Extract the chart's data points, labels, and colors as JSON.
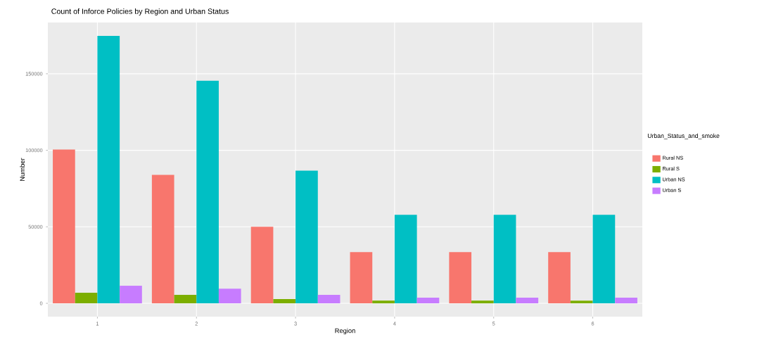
{
  "chart_data": {
    "type": "bar",
    "title": "Count of Inforce Policies by Region and Urban Status",
    "xlabel": "Region",
    "ylabel": "Number",
    "legend_title": "Urban_Status_and_smoke",
    "categories": [
      "1",
      "2",
      "3",
      "4",
      "5",
      "6"
    ],
    "series": [
      {
        "name": "Rural NS",
        "color": "#f8766d",
        "values": [
          100500,
          84000,
          50000,
          33500,
          33500,
          33500
        ]
      },
      {
        "name": "Rural S",
        "color": "#7cae00",
        "values": [
          6900,
          5500,
          2800,
          1800,
          1800,
          1800
        ]
      },
      {
        "name": "Urban NS",
        "color": "#00bfc4",
        "values": [
          174800,
          145400,
          86700,
          57800,
          57800,
          57800
        ]
      },
      {
        "name": "Urban S",
        "color": "#c77cff",
        "values": [
          11500,
          9600,
          5500,
          3700,
          3700,
          3700
        ]
      }
    ],
    "ylim": [
      -8700,
      183500
    ],
    "yticks": [
      0,
      50000,
      100000,
      150000
    ],
    "grid": true,
    "legend": "right"
  }
}
